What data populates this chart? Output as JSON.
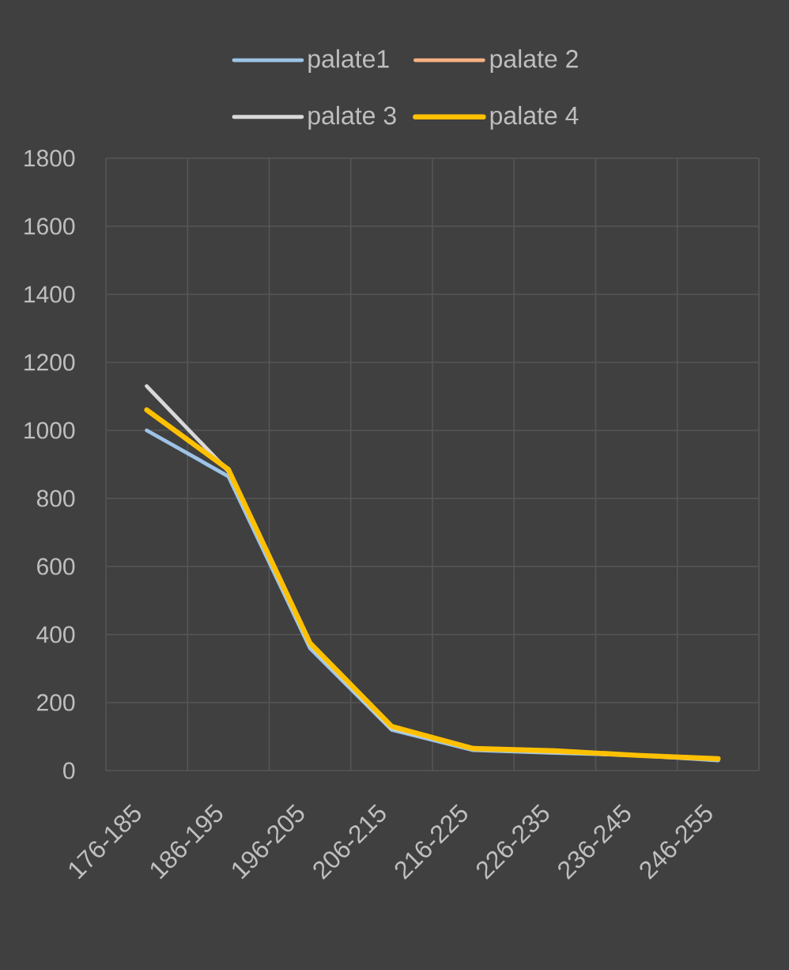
{
  "chart_data": {
    "type": "line",
    "categories": [
      "176-185",
      "186-195",
      "196-205",
      "206-215",
      "216-225",
      "226-235",
      "236-245",
      "246-255"
    ],
    "series": [
      {
        "name": "palate1",
        "color": "#9dc3e6",
        "values": [
          1000,
          865,
          360,
          120,
          60,
          52,
          45,
          30
        ]
      },
      {
        "name": "palate 2",
        "color": "#f4b183",
        "values": [
          null,
          null,
          null,
          null,
          null,
          null,
          null,
          null
        ]
      },
      {
        "name": "palate 3",
        "color": "#d9d9d9",
        "values": [
          1130,
          880,
          370,
          125,
          65,
          55,
          45,
          35
        ]
      },
      {
        "name": "palate 4",
        "color": "#ffc000",
        "values": [
          1060,
          885,
          375,
          130,
          65,
          58,
          45,
          35
        ]
      }
    ],
    "ylim": [
      0,
      1800
    ],
    "yticks": [
      0,
      200,
      400,
      600,
      800,
      1000,
      1200,
      1400,
      1600,
      1800
    ],
    "grid": true,
    "legend": "top",
    "line_style": "solid"
  }
}
